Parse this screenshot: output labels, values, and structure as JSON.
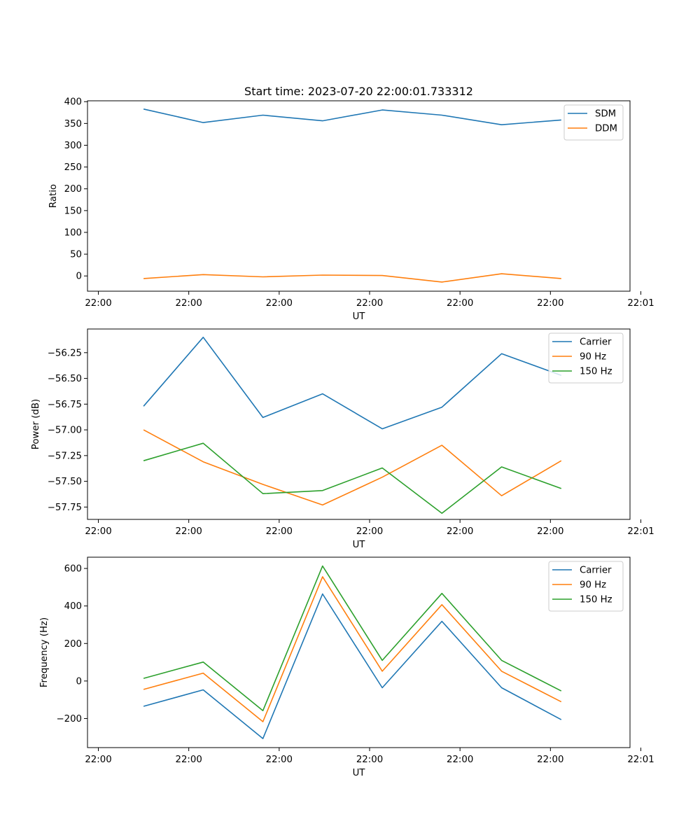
{
  "figure_title": "Start time: 2023-07-20 22:00:01.733312",
  "chart_data": [
    {
      "type": "line",
      "title": "Start time: 2023-07-20 22:00:01.733312",
      "xlabel": "UT",
      "ylabel": "Ratio",
      "xlim": [
        -0.5,
        5.5
      ],
      "ylim": [
        -35,
        402
      ],
      "xticks": [
        -0.38,
        0.62,
        1.62,
        2.62,
        3.62,
        4.62,
        5.62
      ],
      "xtick_labels": [
        "22:00",
        "22:00",
        "22:00",
        "22:00",
        "22:00",
        "22:00",
        "22:01"
      ],
      "yticks": [
        0,
        50,
        100,
        150,
        200,
        250,
        300,
        350,
        400
      ],
      "ytick_labels": [
        "0",
        "50",
        "100",
        "150",
        "200",
        "250",
        "300",
        "350",
        "400"
      ],
      "legend_position": "top-right",
      "x": [
        0.12,
        0.78,
        1.44,
        2.1,
        2.76,
        3.42,
        4.08,
        4.74
      ],
      "series": [
        {
          "name": "SDM",
          "color": "#1f77b4",
          "values": [
            383,
            352,
            369,
            356,
            381,
            369,
            347,
            358
          ]
        },
        {
          "name": "DDM",
          "color": "#ff7f0e",
          "values": [
            -6,
            3,
            -2,
            2,
            1,
            -14,
            5,
            -6
          ]
        }
      ]
    },
    {
      "type": "line",
      "title": "",
      "xlabel": "UT",
      "ylabel": "Power (dB)",
      "xlim": [
        -0.5,
        5.5
      ],
      "ylim": [
        -57.87,
        -56.02
      ],
      "xticks": [
        -0.38,
        0.62,
        1.62,
        2.62,
        3.62,
        4.62,
        5.62
      ],
      "xtick_labels": [
        "22:00",
        "22:00",
        "22:00",
        "22:00",
        "22:00",
        "22:00",
        "22:01"
      ],
      "yticks": [
        -57.75,
        -57.5,
        -57.25,
        -57.0,
        -56.75,
        -56.5,
        -56.25
      ],
      "ytick_labels": [
        "−57.75",
        "−57.50",
        "−57.25",
        "−57.00",
        "−56.75",
        "−56.50",
        "−56.25"
      ],
      "legend_position": "top-right",
      "x": [
        0.12,
        0.78,
        1.44,
        2.1,
        2.76,
        3.42,
        4.08,
        4.74
      ],
      "series": [
        {
          "name": "Carrier",
          "color": "#1f77b4",
          "values": [
            -56.77,
            -56.1,
            -56.88,
            -56.65,
            -56.99,
            -56.78,
            -56.26,
            -56.47
          ]
        },
        {
          "name": "90 Hz",
          "color": "#ff7f0e",
          "values": [
            -57.0,
            -57.31,
            -57.53,
            -57.73,
            -57.46,
            -57.15,
            -57.64,
            -57.3
          ]
        },
        {
          "name": "150 Hz",
          "color": "#2ca02c",
          "values": [
            -57.3,
            -57.13,
            -57.62,
            -57.59,
            -57.37,
            -57.81,
            -57.36,
            -57.57
          ]
        }
      ]
    },
    {
      "type": "line",
      "title": "",
      "xlabel": "UT",
      "ylabel": "Frequency (Hz)",
      "xlim": [
        -0.5,
        5.5
      ],
      "ylim": [
        -355,
        660
      ],
      "xticks": [
        -0.38,
        0.62,
        1.62,
        2.62,
        3.62,
        4.62,
        5.62
      ],
      "xtick_labels": [
        "22:00",
        "22:00",
        "22:00",
        "22:00",
        "22:00",
        "22:00",
        "22:01"
      ],
      "yticks": [
        -200,
        0,
        200,
        400,
        600
      ],
      "ytick_labels": [
        "−200",
        "0",
        "200",
        "400",
        "600"
      ],
      "legend_position": "top-right",
      "x": [
        0.12,
        0.78,
        1.44,
        2.1,
        2.76,
        3.42,
        4.08,
        4.74
      ],
      "series": [
        {
          "name": "Carrier",
          "color": "#1f77b4",
          "values": [
            -135,
            -47,
            -307,
            464,
            -36,
            318,
            -36,
            -206
          ]
        },
        {
          "name": "90 Hz",
          "color": "#ff7f0e",
          "values": [
            -45,
            42,
            -217,
            556,
            52,
            407,
            52,
            -111
          ]
        },
        {
          "name": "150 Hz",
          "color": "#2ca02c",
          "values": [
            14,
            101,
            -158,
            613,
            110,
            467,
            110,
            -53
          ]
        }
      ]
    }
  ]
}
